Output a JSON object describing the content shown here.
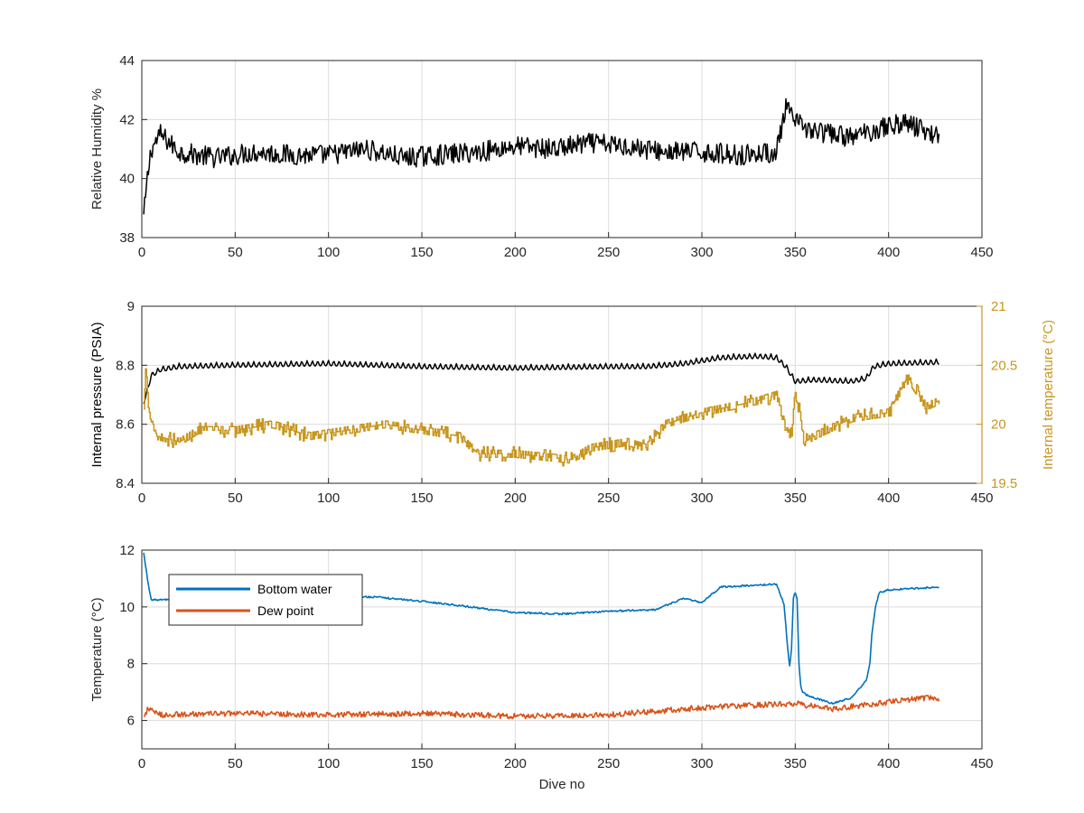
{
  "chart_data": [
    {
      "type": "line",
      "xlabel": "",
      "ylabel": "Relative Humidity %",
      "xlim": [
        0,
        450
      ],
      "ylim": [
        38,
        44
      ],
      "xticks": [
        0,
        50,
        100,
        150,
        200,
        250,
        300,
        350,
        400,
        450
      ],
      "yticks": [
        38,
        40,
        42,
        44
      ],
      "grid": true,
      "series": [
        {
          "color": "#000000",
          "x": [
            1,
            3,
            5,
            10,
            20,
            40,
            60,
            80,
            100,
            120,
            140,
            160,
            180,
            200,
            220,
            240,
            260,
            280,
            300,
            320,
            340,
            345,
            350,
            360,
            380,
            400,
            410,
            420,
            427
          ],
          "y": [
            38.7,
            40.0,
            41.0,
            41.5,
            40.9,
            40.7,
            40.9,
            40.8,
            40.8,
            41.0,
            40.7,
            40.8,
            40.9,
            41.1,
            41.0,
            41.2,
            41.1,
            40.9,
            40.9,
            40.8,
            40.9,
            42.4,
            41.9,
            41.6,
            41.4,
            41.8,
            41.9,
            41.6,
            41.5
          ],
          "noise": 0.35
        }
      ]
    },
    {
      "type": "line",
      "xlabel": "",
      "ylabel": "Internal pressure (PSIA)",
      "y2label": "Internal temperature (°C)",
      "xlim": [
        0,
        450
      ],
      "ylim": [
        8.4,
        9
      ],
      "y2lim": [
        19.5,
        21
      ],
      "xticks": [
        0,
        50,
        100,
        150,
        200,
        250,
        300,
        350,
        400,
        450
      ],
      "yticks": [
        8.4,
        8.6,
        8.8,
        9
      ],
      "ytick_labels": [
        "8.4",
        "8.6",
        "8.8",
        "9"
      ],
      "y2ticks": [
        19.5,
        20,
        20.5,
        21
      ],
      "y2tick_labels": [
        "19.5",
        "20",
        "20.5",
        "21"
      ],
      "y2color": "#c8961e",
      "grid": true,
      "series": [
        {
          "color": "#000000",
          "axis": "left",
          "x": [
            1,
            3,
            5,
            10,
            20,
            50,
            100,
            150,
            200,
            250,
            270,
            290,
            300,
            310,
            330,
            340,
            345,
            350,
            360,
            380,
            388,
            392,
            400,
            427
          ],
          "y": [
            8.68,
            8.72,
            8.77,
            8.79,
            8.8,
            8.805,
            8.81,
            8.8,
            8.795,
            8.8,
            8.8,
            8.81,
            8.82,
            8.83,
            8.835,
            8.83,
            8.8,
            8.75,
            8.755,
            8.75,
            8.76,
            8.8,
            8.81,
            8.815
          ],
          "noise": 0.012
        },
        {
          "color": "#c8961e",
          "axis": "right",
          "x": [
            1,
            2,
            4,
            8,
            20,
            30,
            50,
            70,
            90,
            110,
            130,
            150,
            170,
            180,
            200,
            230,
            240,
            260,
            270,
            280,
            290,
            300,
            330,
            340,
            345,
            348,
            350,
            355,
            360,
            380,
            400,
            410,
            420,
            427
          ],
          "y": [
            20.1,
            20.5,
            20.1,
            19.9,
            19.85,
            19.95,
            19.95,
            20.0,
            19.9,
            19.95,
            20.0,
            19.95,
            19.9,
            19.75,
            19.75,
            19.7,
            19.8,
            19.85,
            19.8,
            20.0,
            20.05,
            20.1,
            20.2,
            20.25,
            19.95,
            19.9,
            20.3,
            19.85,
            19.9,
            20.05,
            20.1,
            20.4,
            20.15,
            20.2
          ],
          "noise": 0.05
        }
      ]
    },
    {
      "type": "line",
      "xlabel": "Dive no",
      "ylabel": "Temperature (°C)",
      "xlim": [
        0,
        450
      ],
      "ylim": [
        5,
        12
      ],
      "xticks": [
        0,
        50,
        100,
        150,
        200,
        250,
        300,
        350,
        400,
        450
      ],
      "yticks": [
        6,
        8,
        10,
        12
      ],
      "grid": true,
      "legend": "top-left",
      "series": [
        {
          "name": "Bottom water",
          "color": "#0072bd",
          "x": [
            1,
            3,
            5,
            10,
            50,
            100,
            125,
            150,
            170,
            200,
            225,
            250,
            275,
            290,
            300,
            310,
            340,
            344,
            346,
            347,
            348,
            349,
            350,
            351,
            352,
            353,
            354,
            356,
            360,
            370,
            380,
            388,
            390,
            391,
            393,
            395,
            400,
            427
          ],
          "y": [
            11.9,
            11.0,
            10.25,
            10.25,
            10.3,
            10.35,
            10.35,
            10.2,
            10.05,
            9.8,
            9.75,
            9.85,
            9.9,
            10.3,
            10.15,
            10.7,
            10.8,
            10.1,
            8.5,
            7.9,
            8.5,
            10.3,
            10.5,
            10.3,
            8.0,
            7.2,
            7.0,
            6.9,
            6.8,
            6.6,
            6.8,
            7.4,
            8.0,
            9.0,
            10.0,
            10.5,
            10.6,
            10.7
          ],
          "noise": 0.03
        },
        {
          "name": "Dew point",
          "color": "#d95319",
          "x": [
            1,
            3,
            10,
            50,
            100,
            150,
            200,
            250,
            300,
            350,
            370,
            400,
            420,
            427
          ],
          "y": [
            6.1,
            6.4,
            6.2,
            6.25,
            6.2,
            6.25,
            6.15,
            6.2,
            6.45,
            6.6,
            6.4,
            6.65,
            6.8,
            6.75
          ],
          "noise": 0.1
        }
      ]
    }
  ]
}
